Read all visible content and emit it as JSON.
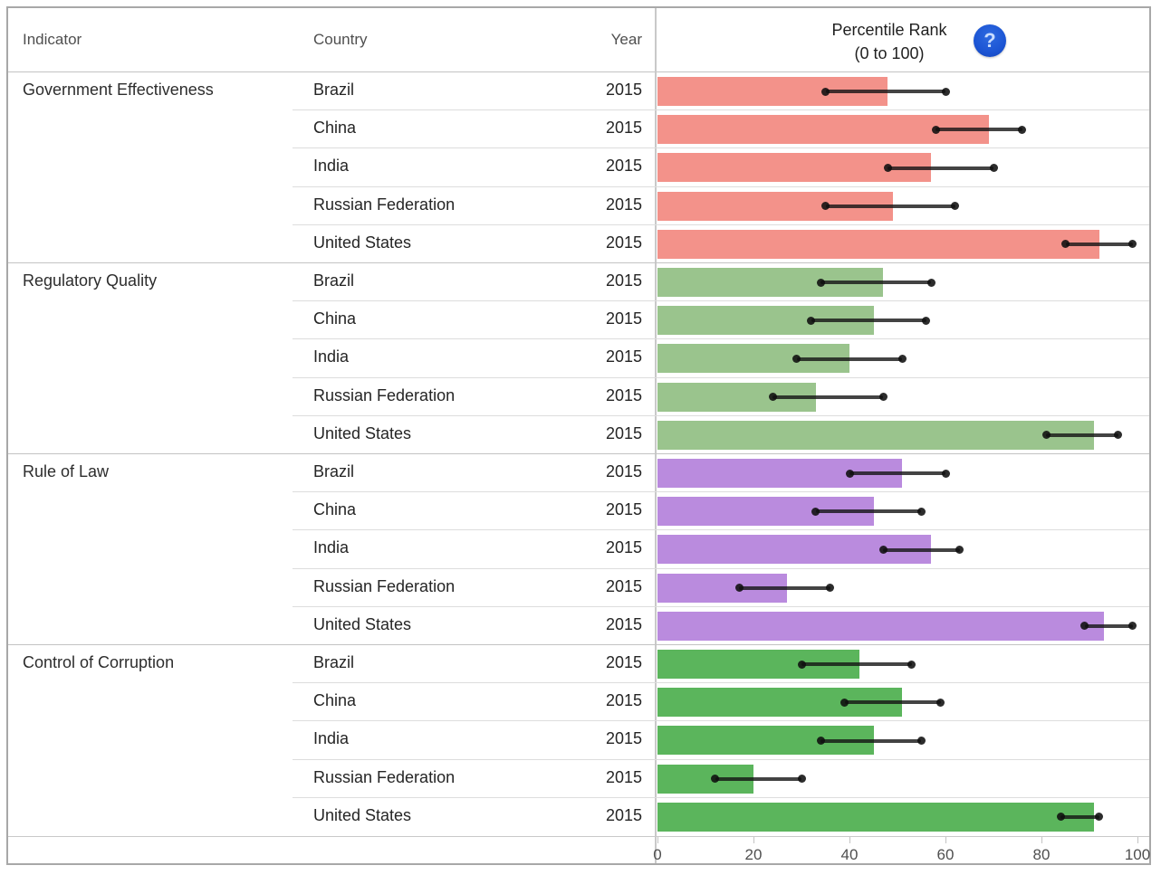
{
  "table": {
    "columns": {
      "indicator": "Indicator",
      "country": "Country",
      "year": "Year"
    },
    "chart_header": {
      "line1": "Percentile Rank",
      "line2": "(0 to 100)"
    }
  },
  "help_icon": {
    "name": "question-mark-icon",
    "glyph": "?"
  },
  "colors": {
    "government_effectiveness": "#F3928A",
    "regulatory_quality": "#9AC48D",
    "rule_of_law": "#BA8BDE",
    "control_of_corruption": "#5BB55C",
    "error_bar": "#1A1A1A",
    "help_icon_bg": "#1C55D4"
  },
  "axis": {
    "min": 0,
    "max": 100,
    "ticks": [
      0,
      20,
      40,
      60,
      80,
      100
    ]
  },
  "chart_data": {
    "type": "bar",
    "title": "Percentile Rank (0 to 100)",
    "xlabel": "Percentile Rank",
    "xlim": [
      0,
      100
    ],
    "grid": false,
    "year": "2015",
    "groups": [
      {
        "indicator": "Government Effectiveness",
        "color": "#F3928A",
        "rows": [
          {
            "country": "Brazil",
            "year": "2015",
            "value": 48,
            "ci_low": 35,
            "ci_high": 60
          },
          {
            "country": "China",
            "year": "2015",
            "value": 69,
            "ci_low": 58,
            "ci_high": 76
          },
          {
            "country": "India",
            "year": "2015",
            "value": 57,
            "ci_low": 48,
            "ci_high": 70
          },
          {
            "country": "Russian Federation",
            "year": "2015",
            "value": 49,
            "ci_low": 35,
            "ci_high": 62
          },
          {
            "country": "United States",
            "year": "2015",
            "value": 92,
            "ci_low": 85,
            "ci_high": 99
          }
        ]
      },
      {
        "indicator": "Regulatory Quality",
        "color": "#9AC48D",
        "rows": [
          {
            "country": "Brazil",
            "year": "2015",
            "value": 47,
            "ci_low": 34,
            "ci_high": 57
          },
          {
            "country": "China",
            "year": "2015",
            "value": 45,
            "ci_low": 32,
            "ci_high": 56
          },
          {
            "country": "India",
            "year": "2015",
            "value": 40,
            "ci_low": 29,
            "ci_high": 51
          },
          {
            "country": "Russian Federation",
            "year": "2015",
            "value": 33,
            "ci_low": 24,
            "ci_high": 47
          },
          {
            "country": "United States",
            "year": "2015",
            "value": 91,
            "ci_low": 81,
            "ci_high": 96
          }
        ]
      },
      {
        "indicator": "Rule of Law",
        "color": "#BA8BDE",
        "rows": [
          {
            "country": "Brazil",
            "year": "2015",
            "value": 51,
            "ci_low": 40,
            "ci_high": 60
          },
          {
            "country": "China",
            "year": "2015",
            "value": 45,
            "ci_low": 33,
            "ci_high": 55
          },
          {
            "country": "India",
            "year": "2015",
            "value": 57,
            "ci_low": 47,
            "ci_high": 63
          },
          {
            "country": "Russian Federation",
            "year": "2015",
            "value": 27,
            "ci_low": 17,
            "ci_high": 36
          },
          {
            "country": "United States",
            "year": "2015",
            "value": 93,
            "ci_low": 89,
            "ci_high": 99
          }
        ]
      },
      {
        "indicator": "Control of Corruption",
        "color": "#5BB55C",
        "rows": [
          {
            "country": "Brazil",
            "year": "2015",
            "value": 42,
            "ci_low": 30,
            "ci_high": 53
          },
          {
            "country": "China",
            "year": "2015",
            "value": 51,
            "ci_low": 39,
            "ci_high": 59
          },
          {
            "country": "India",
            "year": "2015",
            "value": 45,
            "ci_low": 34,
            "ci_high": 55
          },
          {
            "country": "Russian Federation",
            "year": "2015",
            "value": 20,
            "ci_low": 12,
            "ci_high": 30
          },
          {
            "country": "United States",
            "year": "2015",
            "value": 91,
            "ci_low": 84,
            "ci_high": 92
          }
        ]
      }
    ]
  }
}
